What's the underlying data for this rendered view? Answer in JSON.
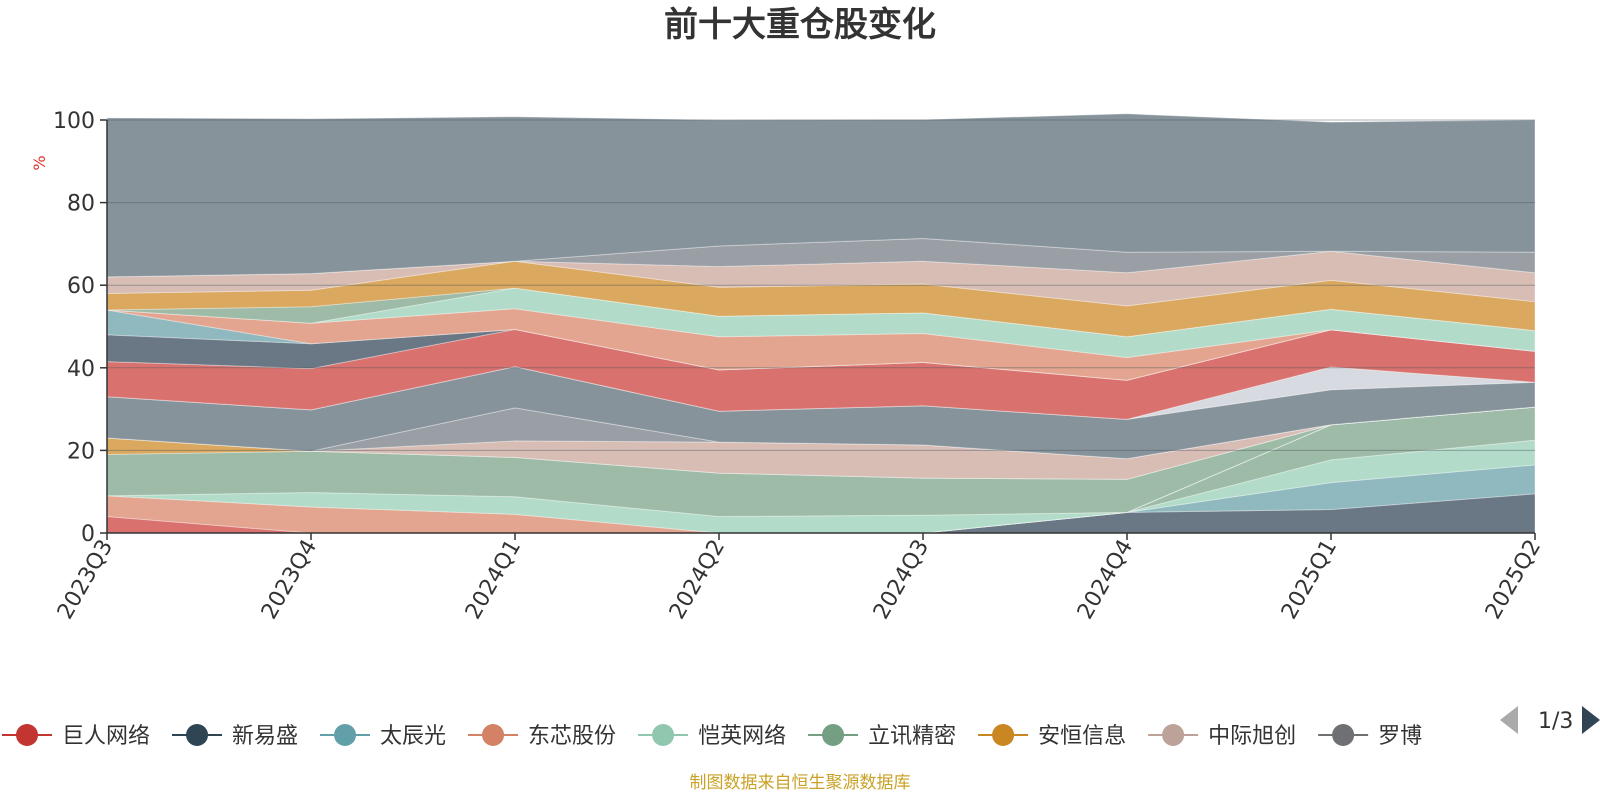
{
  "title": "前十大重仓股变化",
  "source": "制图数据来自恒生聚源数据库",
  "legend_pager": "1/3",
  "chart_data": {
    "type": "area",
    "stacked": true,
    "unit": "%",
    "ylim": [
      0,
      100
    ],
    "yticks": [
      0,
      20,
      40,
      60,
      80,
      100
    ],
    "grid": true,
    "legend_position": "bottom",
    "categories": [
      "2023Q3",
      "2023Q4",
      "2024Q1",
      "2024Q2",
      "2024Q3",
      "2024Q4",
      "2025Q1",
      "2025Q2"
    ],
    "series": [
      {
        "name": "",
        "color": "#6a7785",
        "values": [
          0,
          0,
          0,
          0,
          0,
          5,
          5.7,
          9.5
        ]
      },
      {
        "name": "",
        "color": "#8fb8bf",
        "values": [
          0,
          0,
          0,
          0,
          0,
          0,
          6.5,
          7
        ]
      },
      {
        "name": "",
        "color": "#b2dcc9",
        "values": [
          0,
          0,
          0,
          0,
          0,
          0,
          5.5,
          6
        ]
      },
      {
        "name": "",
        "color": "#9dbba6",
        "values": [
          0,
          0,
          0,
          0,
          0,
          0,
          8.5,
          8
        ]
      },
      {
        "name": "",
        "color": "#d8ccc9",
        "values": [
          0,
          0,
          0,
          0,
          0,
          0,
          0,
          0
        ]
      },
      {
        "name": "巨人网络",
        "color": "#d9726e",
        "values": [
          4,
          0,
          0,
          0,
          0,
          0,
          0,
          0
        ]
      },
      {
        "name": "东芯股份",
        "color": "#e3a58f",
        "values": [
          5,
          6.3,
          4.5,
          0,
          0,
          0,
          0,
          0
        ]
      },
      {
        "name": "恺英网络",
        "color": "#b2dcc9",
        "values": [
          0,
          3.5,
          4.3,
          4,
          4.3,
          0,
          0,
          0
        ]
      },
      {
        "name": "立讯精密",
        "color": "#9dbba6",
        "values": [
          10,
          10,
          9.5,
          10.5,
          9,
          8,
          0,
          0
        ]
      },
      {
        "name": "安恒信息",
        "color": "#daa85e",
        "values": [
          4,
          0,
          0,
          0,
          0,
          0,
          0,
          0
        ]
      },
      {
        "name": "中际旭创",
        "color": "#d8bdb5",
        "values": [
          0,
          0,
          4,
          7.5,
          8,
          5,
          0,
          0
        ]
      },
      {
        "name": "罗博特科",
        "color": "#9a9fa5",
        "values": [
          0,
          0,
          8,
          0,
          0,
          0,
          0,
          0
        ]
      },
      {
        "name": "",
        "color": "#87939b",
        "values": [
          10,
          10,
          10,
          7.5,
          9.5,
          9.5,
          8.5,
          6
        ]
      },
      {
        "name": "",
        "color": "#d7dae0",
        "values": [
          0,
          0,
          0,
          0,
          0,
          0,
          5.5,
          0
        ]
      },
      {
        "name": "",
        "color": "#d9726e",
        "values": [
          8.5,
          10,
          9,
          10,
          10.5,
          9.5,
          9,
          7.5
        ]
      },
      {
        "name": "",
        "color": "#e3a58f",
        "values": [
          0,
          0,
          0,
          0,
          0,
          0,
          0,
          0
        ]
      },
      {
        "name": "",
        "color": "#6a7785",
        "values": [
          6.5,
          6,
          0,
          0,
          0,
          0,
          0,
          0
        ]
      },
      {
        "name": "",
        "color": "#8fb8bf",
        "values": [
          6,
          0,
          0,
          0,
          0,
          0,
          0,
          0
        ]
      },
      {
        "name": "",
        "color": "#e3a58f",
        "values": [
          0,
          5,
          5,
          8,
          7,
          5.5,
          0,
          0
        ]
      },
      {
        "name": "",
        "color": "#b2dcc9",
        "values": [
          0,
          0,
          5,
          5,
          5,
          5,
          5,
          5
        ]
      },
      {
        "name": "",
        "color": "#9dbba6",
        "values": [
          0,
          4,
          0,
          0,
          0,
          0,
          0,
          0
        ]
      },
      {
        "name": "",
        "color": "#daa85e",
        "values": [
          4,
          4,
          6.5,
          7,
          7,
          7.5,
          7,
          7
        ]
      },
      {
        "name": "",
        "color": "#d8bdb5",
        "values": [
          4,
          4,
          0,
          5,
          5.5,
          8,
          7,
          7
        ]
      },
      {
        "name": "",
        "color": "#9a9fa5",
        "values": [
          0,
          0,
          0,
          5,
          5.5,
          5,
          0,
          5
        ]
      },
      {
        "name": "",
        "color": "#87939b",
        "values": [
          38.5,
          37.5,
          35,
          30.5,
          28.8,
          33.5,
          31.3,
          32
        ]
      }
    ]
  },
  "legend": [
    {
      "name": "巨人网络",
      "color": "#c23531"
    },
    {
      "name": "新易盛",
      "color": "#2f4554"
    },
    {
      "name": "太辰光",
      "color": "#61a0a8"
    },
    {
      "name": "东芯股份",
      "color": "#d48265"
    },
    {
      "name": "恺英网络",
      "color": "#91c7ae"
    },
    {
      "name": "立讯精密",
      "color": "#749f83"
    },
    {
      "name": "安恒信息",
      "color": "#ca8622"
    },
    {
      "name": "中际旭创",
      "color": "#bda29a"
    },
    {
      "name": "罗博特科",
      "color": "#6e7074"
    }
  ]
}
